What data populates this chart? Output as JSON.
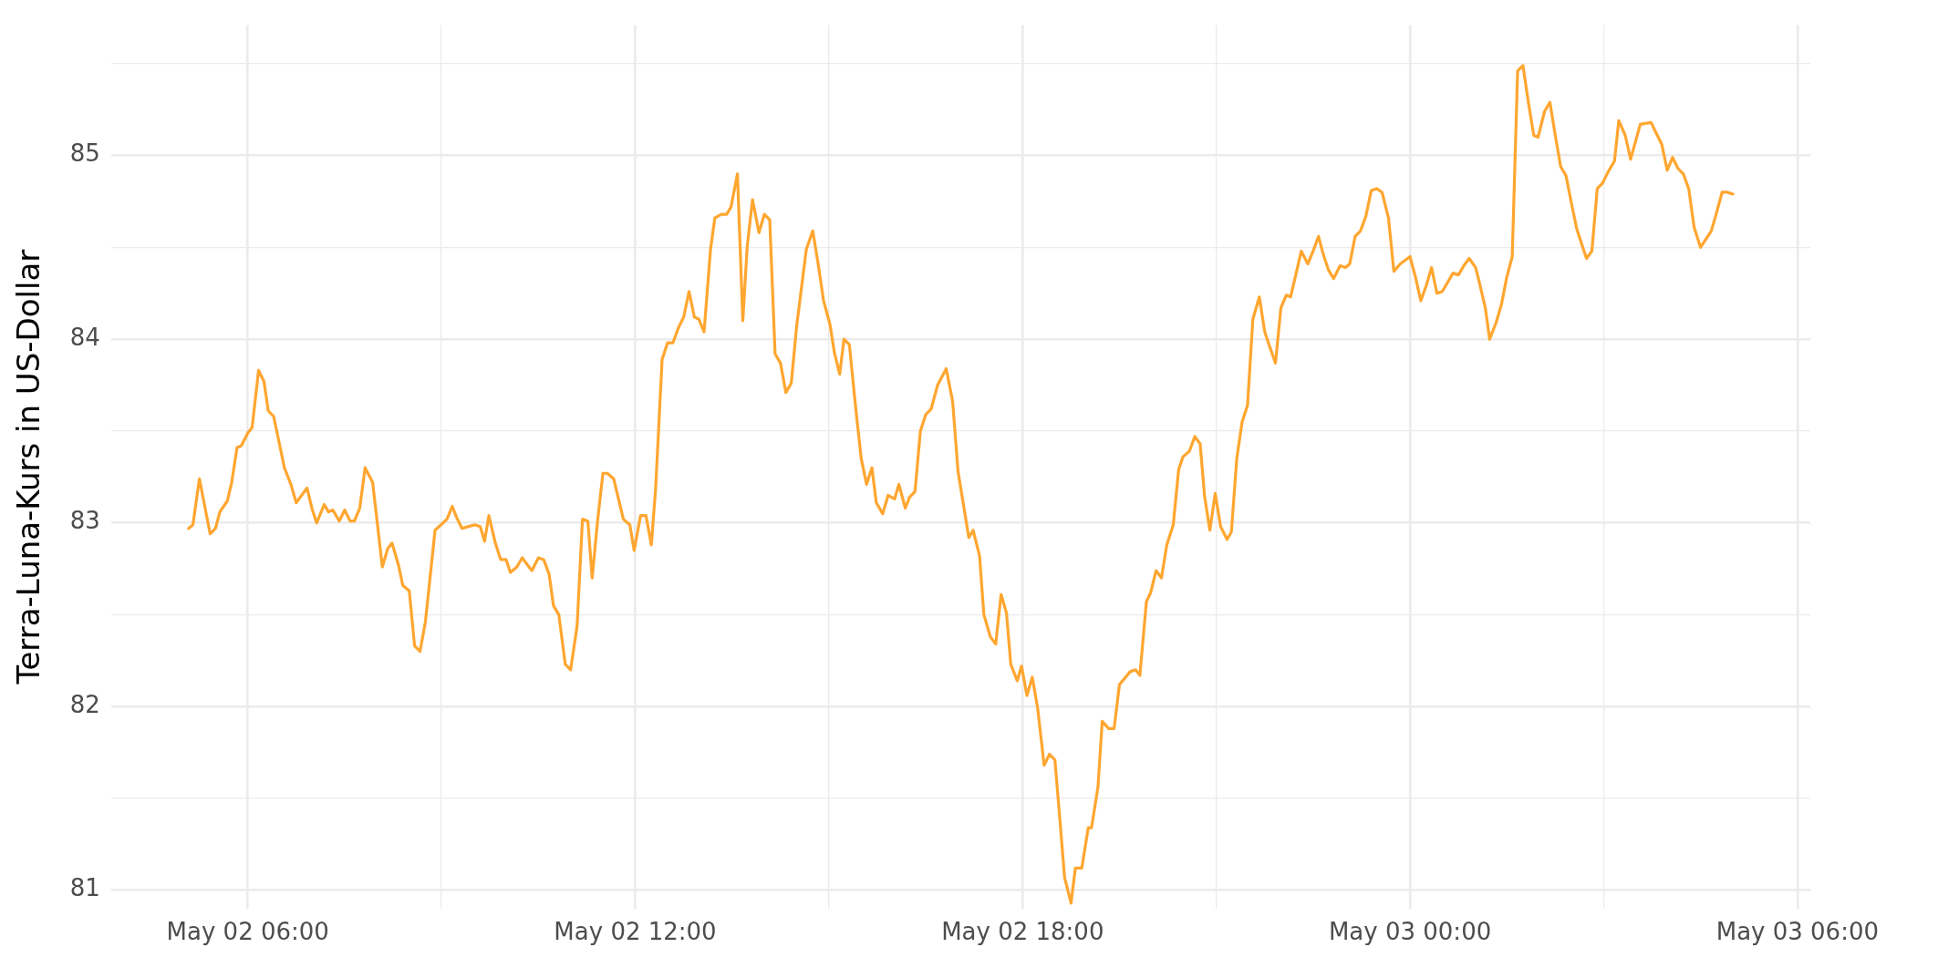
{
  "chart_data": {
    "type": "line",
    "ylabel": "Terra-Luna-Kurs in US-Dollar",
    "x": [
      "--05-02T05:05",
      "--05-02T05:09",
      "--05-02T05:15",
      "--05-02T05:25",
      "--05-02T05:30",
      "--05-02T05:34",
      "--05-02T05:41",
      "--05-02T05:45",
      "--05-02T05:50",
      "--05-02T05:54",
      "--05-02T06:00",
      "--05-02T06:04",
      "--05-02T06:10",
      "--05-02T06:15",
      "--05-02T06:19",
      "--05-02T06:24",
      "--05-02T06:29",
      "--05-02T06:34",
      "--05-02T06:40",
      "--05-02T06:45",
      "--05-02T06:55",
      "--05-02T07:00",
      "--05-02T07:04",
      "--05-02T07:11",
      "--05-02T07:15",
      "--05-02T07:19",
      "--05-02T07:25",
      "--05-02T07:30",
      "--05-02T07:35",
      "--05-02T07:39",
      "--05-02T07:44",
      "--05-02T07:49",
      "--05-02T07:56",
      "--05-02T08:05",
      "--05-02T08:10",
      "--05-02T08:14",
      "--05-02T08:20",
      "--05-02T08:24",
      "--05-02T08:30",
      "--05-02T08:35",
      "--05-02T08:40",
      "--05-02T08:45",
      "--05-02T08:54",
      "--05-02T09:05",
      "--05-02T09:10",
      "--05-02T09:14",
      "--05-02T09:19",
      "--05-02T09:31",
      "--05-02T09:36",
      "--05-02T09:40",
      "--05-02T09:44",
      "--05-02T09:50",
      "--05-02T09:55",
      "--05-02T10:00",
      "--05-02T10:04",
      "--05-02T10:10",
      "--05-02T10:15",
      "--05-02T10:20",
      "--05-02T10:24",
      "--05-02T10:30",
      "--05-02T10:35",
      "--05-02T10:40",
      "--05-02T10:44",
      "--05-02T10:49",
      "--05-02T10:55",
      "--05-02T11:00",
      "--05-02T11:06",
      "--05-02T11:11",
      "--05-02T11:16",
      "--05-02T11:20",
      "--05-02T11:25",
      "--05-02T11:30",
      "--05-02T11:34",
      "--05-02T11:40",
      "--05-02T11:49",
      "--05-02T11:55",
      "--05-02T11:59",
      "--05-02T12:05",
      "--05-02T12:10",
      "--05-02T12:15",
      "--05-02T12:19",
      "--05-02T12:25",
      "--05-02T12:30",
      "--05-02T12:35",
      "--05-02T12:40",
      "--05-02T12:45",
      "--05-02T12:50",
      "--05-02T12:55",
      "--05-02T12:59",
      "--05-02T13:04",
      "--05-02T13:10",
      "--05-02T13:14",
      "--05-02T13:20",
      "--05-02T13:25",
      "--05-02T13:29",
      "--05-02T13:35",
      "--05-02T13:40",
      "--05-02T13:44",
      "--05-02T13:49",
      "--05-02T13:55",
      "--05-02T14:00",
      "--05-02T14:05",
      "--05-02T14:10",
      "--05-02T14:15",
      "--05-02T14:20",
      "--05-02T14:25",
      "--05-02T14:30",
      "--05-02T14:39",
      "--05-02T14:45",
      "--05-02T14:50",
      "--05-02T14:55",
      "--05-02T15:01",
      "--05-02T15:05",
      "--05-02T15:10",
      "--05-02T15:14",
      "--05-02T15:19",
      "--05-02T15:25",
      "--05-02T15:30",
      "--05-02T15:35",
      "--05-02T15:40",
      "--05-02T15:44",
      "--05-02T15:50",
      "--05-02T15:55",
      "--05-02T16:01",
      "--05-02T16:05",
      "--05-02T16:11",
      "--05-02T16:15",
      "--05-02T16:20",
      "--05-02T16:25",
      "--05-02T16:30",
      "--05-02T16:35",
      "--05-02T16:41",
      "--05-02T16:49",
      "--05-02T16:55",
      "--05-02T17:00",
      "--05-02T17:05",
      "--05-02T17:10",
      "--05-02T17:14",
      "--05-02T17:20",
      "--05-02T17:24",
      "--05-02T17:30",
      "--05-02T17:35",
      "--05-02T17:40",
      "--05-02T17:45",
      "--05-02T17:49",
      "--05-02T17:55",
      "--05-02T17:59",
      "--05-02T18:04",
      "--05-02T18:09",
      "--05-02T18:14",
      "--05-02T18:20",
      "--05-02T18:25",
      "--05-02T18:30",
      "--05-02T18:34",
      "--05-02T18:39",
      "--05-02T18:45",
      "--05-02T18:49",
      "--05-02T18:55",
      "--05-02T19:01",
      "--05-02T19:04",
      "--05-02T19:10",
      "--05-02T19:14",
      "--05-02T19:20",
      "--05-02T19:25",
      "--05-02T19:30",
      "--05-02T19:40",
      "--05-02T19:45",
      "--05-02T19:49",
      "--05-02T19:55",
      "--05-02T19:59",
      "--05-02T20:04",
      "--05-02T20:09",
      "--05-02T20:14",
      "--05-02T20:20",
      "--05-02T20:25",
      "--05-02T20:29",
      "--05-02T20:35",
      "--05-02T20:40",
      "--05-02T20:45",
      "--05-02T20:49",
      "--05-02T20:54",
      "--05-02T20:59",
      "--05-02T21:04",
      "--05-02T21:10",
      "--05-02T21:14",
      "--05-02T21:19",
      "--05-02T21:24",
      "--05-02T21:29",
      "--05-02T21:34",
      "--05-02T21:40",
      "--05-02T21:45",
      "--05-02T21:49",
      "--05-02T21:55",
      "--05-02T22:00",
      "--05-02T22:05",
      "--05-02T22:09",
      "--05-02T22:19",
      "--05-02T22:25",
      "--05-02T22:30",
      "--05-02T22:35",
      "--05-02T22:39",
      "--05-02T22:44",
      "--05-02T22:49",
      "--05-02T22:55",
      "--05-02T23:00",
      "--05-02T23:04",
      "--05-02T23:09",
      "--05-02T23:14",
      "--05-02T23:19",
      "--05-02T23:24",
      "--05-02T23:29",
      "--05-02T23:34",
      "--05-02T23:40",
      "--05-02T23:45",
      "--05-02T23:51",
      "--05-03T00:00",
      "--05-03T00:05",
      "--05-03T00:10",
      "--05-03T00:15",
      "--05-03T00:20",
      "--05-03T00:25",
      "--05-03T00:30",
      "--05-03T00:35",
      "--05-03T00:40",
      "--05-03T00:45",
      "--05-03T00:50",
      "--05-03T00:55",
      "--05-03T01:01",
      "--05-03T01:04",
      "--05-03T01:10",
      "--05-03T01:14",
      "--05-03T01:20",
      "--05-03T01:25",
      "--05-03T01:30",
      "--05-03T01:35",
      "--05-03T01:40",
      "--05-03T01:45",
      "--05-03T01:50",
      "--05-03T01:55",
      "--05-03T01:59",
      "--05-03T02:05",
      "--05-03T02:10",
      "--05-03T02:15",
      "--05-03T02:20",
      "--05-03T02:25",
      "--05-03T02:30",
      "--05-03T02:35",
      "--05-03T02:40",
      "--05-03T02:44",
      "--05-03T02:49",
      "--05-03T02:54",
      "--05-03T02:59",
      "--05-03T03:04",
      "--05-03T03:10",
      "--05-03T03:14",
      "--05-03T03:20",
      "--05-03T03:25",
      "--05-03T03:34",
      "--05-03T03:44",
      "--05-03T03:49",
      "--05-03T03:54",
      "--05-03T03:59",
      "--05-03T04:04",
      "--05-03T04:09",
      "--05-03T04:14",
      "--05-03T04:19",
      "--05-03T04:24",
      "--05-03T04:30",
      "--05-03T04:40",
      "--05-03T04:44",
      "--05-03T04:50",
      "--05-03T04:55",
      "--05-03T05:00"
    ],
    "series": [
      {
        "color": "#ffa630",
        "values": [
          82.97,
          82.99,
          83.24,
          82.94,
          82.97,
          83.06,
          83.12,
          83.22,
          83.41,
          83.42,
          83.49,
          83.52,
          83.83,
          83.77,
          83.61,
          83.58,
          83.44,
          83.3,
          83.21,
          83.11,
          83.19,
          83.07,
          83.0,
          83.1,
          83.06,
          83.07,
          83.01,
          83.07,
          83.01,
          83.01,
          83.08,
          83.3,
          83.22,
          82.76,
          82.86,
          82.89,
          82.77,
          82.66,
          82.63,
          82.33,
          82.3,
          82.46,
          82.96,
          83.02,
          83.09,
          83.03,
          82.97,
          82.99,
          82.98,
          82.9,
          83.04,
          82.89,
          82.8,
          82.8,
          82.73,
          82.76,
          82.81,
          82.77,
          82.74,
          82.81,
          82.8,
          82.72,
          82.55,
          82.5,
          82.23,
          82.2,
          82.44,
          83.02,
          83.01,
          82.7,
          83.01,
          83.27,
          83.27,
          83.24,
          83.02,
          82.99,
          82.85,
          83.04,
          83.04,
          82.88,
          83.19,
          83.89,
          83.98,
          83.98,
          84.06,
          84.12,
          84.26,
          84.12,
          84.11,
          84.04,
          84.49,
          84.66,
          84.68,
          84.68,
          84.72,
          84.9,
          84.1,
          84.5,
          84.76,
          84.58,
          84.68,
          84.65,
          83.92,
          83.87,
          83.71,
          83.76,
          84.07,
          84.49,
          84.59,
          84.41,
          84.21,
          84.08,
          83.93,
          83.81,
          84.0,
          83.97,
          83.62,
          83.35,
          83.21,
          83.3,
          83.11,
          83.05,
          83.15,
          83.13,
          83.21,
          83.08,
          83.14,
          83.17,
          83.5,
          83.59,
          83.62,
          83.75,
          83.84,
          83.66,
          83.28,
          83.1,
          82.92,
          82.96,
          82.82,
          82.5,
          82.38,
          82.34,
          82.61,
          82.51,
          82.23,
          82.14,
          82.22,
          82.06,
          82.16,
          81.99,
          81.68,
          81.74,
          81.71,
          81.43,
          81.07,
          80.93,
          81.12,
          81.12,
          81.34,
          81.34,
          81.56,
          81.92,
          81.88,
          81.88,
          82.12,
          82.19,
          82.2,
          82.17,
          82.57,
          82.62,
          82.74,
          82.7,
          82.88,
          82.99,
          83.29,
          83.36,
          83.39,
          83.47,
          83.43,
          83.15,
          82.96,
          83.16,
          82.98,
          82.91,
          82.95,
          83.35,
          83.55,
          83.64,
          84.11,
          84.23,
          84.04,
          83.97,
          83.87,
          84.17,
          84.24,
          84.23,
          84.48,
          84.41,
          84.48,
          84.56,
          84.47,
          84.38,
          84.33,
          84.4,
          84.39,
          84.41,
          84.56,
          84.59,
          84.67,
          84.81,
          84.82,
          84.8,
          84.66,
          84.37,
          84.41,
          84.45,
          84.34,
          84.21,
          84.29,
          84.39,
          84.25,
          84.26,
          84.31,
          84.36,
          84.35,
          84.4,
          84.44,
          84.39,
          84.32,
          84.17,
          84.0,
          84.09,
          84.19,
          84.34,
          84.45,
          85.46,
          85.49,
          85.29,
          85.11,
          85.1,
          85.24,
          85.29,
          85.11,
          84.94,
          84.89,
          84.74,
          84.6,
          84.51,
          84.44,
          84.48,
          84.82,
          84.85,
          84.91,
          84.97,
          85.19,
          85.11,
          84.98,
          85.17,
          85.18,
          85.12,
          85.06,
          84.92,
          84.99,
          84.93,
          84.9,
          84.82,
          84.61,
          84.5,
          84.59,
          84.67,
          84.8,
          84.8,
          84.79
        ]
      }
    ],
    "xlim": [
      "--05-02T03:53",
      "--05-03T06:12"
    ],
    "xticks": [
      {
        "value": "--05-02T06:00",
        "label": "May 02 06:00"
      },
      {
        "value": "--05-02T09:00",
        "label": null
      },
      {
        "value": "--05-02T12:00",
        "label": "May 02 12:00"
      },
      {
        "value": "--05-02T15:00",
        "label": null
      },
      {
        "value": "--05-02T18:00",
        "label": "May 02 18:00"
      },
      {
        "value": "--05-02T21:00",
        "label": null
      },
      {
        "value": "--05-03T00:00",
        "label": "May 03 00:00"
      },
      {
        "value": "--05-03T03:00",
        "label": null
      },
      {
        "value": "--05-03T06:00",
        "label": "May 03 06:00"
      }
    ],
    "ylim": [
      80.9,
      85.71
    ],
    "yticks": [
      81,
      {
        "value": 81.5,
        "label": null
      },
      82,
      {
        "value": 82.5,
        "label": null
      },
      83,
      {
        "value": 83.5,
        "label": null
      },
      84,
      {
        "value": 84.5,
        "label": null
      },
      85,
      {
        "value": 85.5,
        "label": null
      }
    ],
    "grid": true,
    "legend": false,
    "marker": "none",
    "line_style": "solid"
  }
}
